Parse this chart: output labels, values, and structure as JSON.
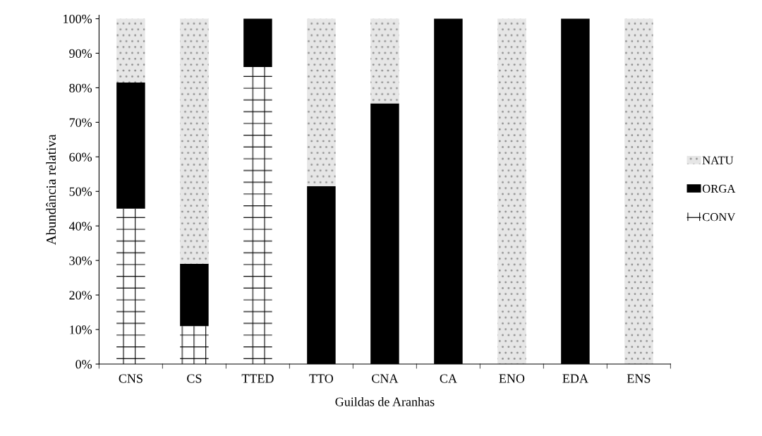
{
  "chart_data": {
    "type": "bar",
    "stacked": true,
    "xlabel": "Guildas de Aranhas",
    "ylabel": "Abundância relativa",
    "categories": [
      "CNS",
      "CS",
      "TTED",
      "TTO",
      "CNA",
      "CA",
      "ENO",
      "EDA",
      "ENS"
    ],
    "series": [
      {
        "name": "CONV",
        "color": "#ffffff",
        "values": [
          45,
          11,
          86,
          0,
          0,
          0,
          0,
          0,
          0
        ]
      },
      {
        "name": "ORGA",
        "color": "#000000",
        "values": [
          36.5,
          18,
          14,
          51.5,
          75.5,
          100,
          0,
          100,
          0
        ]
      },
      {
        "name": "NATU",
        "color": "#e6e6e6",
        "values": [
          18.5,
          71,
          0,
          48.5,
          24.5,
          0,
          100,
          0,
          100
        ]
      }
    ],
    "ylim": [
      0,
      101
    ],
    "yticks": [
      {
        "value": 0,
        "label": "0%"
      },
      {
        "value": 10,
        "label": "10%"
      },
      {
        "value": 20,
        "label": "20%"
      },
      {
        "value": 30,
        "label": "30%"
      },
      {
        "value": 40,
        "label": "40%"
      },
      {
        "value": 50,
        "label": "50%"
      },
      {
        "value": 60,
        "label": "60%"
      },
      {
        "value": 70,
        "label": "70%"
      },
      {
        "value": 80,
        "label": "80%"
      },
      {
        "value": 90,
        "label": "90%"
      },
      {
        "value": 100,
        "label": "100%"
      }
    ],
    "grid": false,
    "legend": "right"
  }
}
